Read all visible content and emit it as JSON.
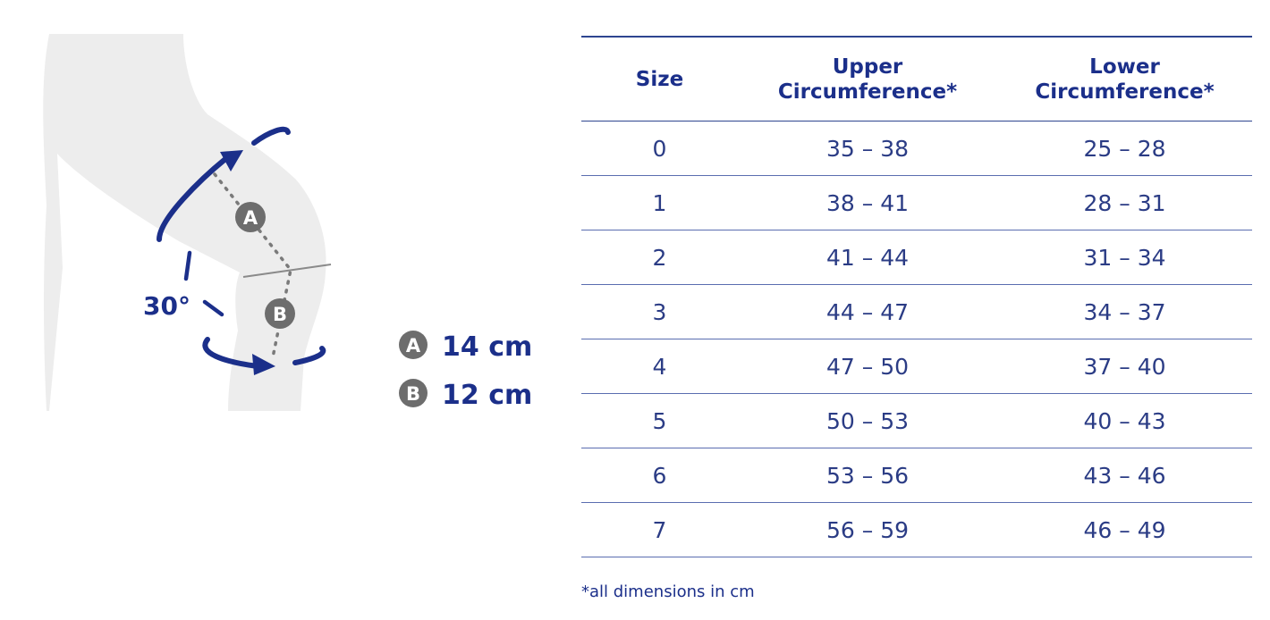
{
  "diagram": {
    "angle_label": "30°",
    "measurements": [
      {
        "point": "A",
        "value": "14 cm"
      },
      {
        "point": "B",
        "value": "12 cm"
      }
    ],
    "colors": {
      "accent": "#1b2f8a",
      "leg": "#ededed",
      "point": "#6d6d6d"
    }
  },
  "table": {
    "headers": {
      "size": "Size",
      "upper": [
        "Upper",
        "Circumference*"
      ],
      "lower": [
        "Lower",
        "Circumference*"
      ]
    },
    "rows": [
      {
        "size": "0",
        "upper": "35 – 38",
        "lower": "25 – 28"
      },
      {
        "size": "1",
        "upper": "38 – 41",
        "lower": "28 – 31"
      },
      {
        "size": "2",
        "upper": "41 – 44",
        "lower": "31 – 34"
      },
      {
        "size": "3",
        "upper": "44 – 47",
        "lower": "34 – 37"
      },
      {
        "size": "4",
        "upper": "47 – 50",
        "lower": "37 – 40"
      },
      {
        "size": "5",
        "upper": "50 – 53",
        "lower": "40 – 43"
      },
      {
        "size": "6",
        "upper": "53 – 56",
        "lower": "43 – 46"
      },
      {
        "size": "7",
        "upper": "56 – 59",
        "lower": "46 – 49"
      }
    ]
  },
  "footnote": "*all dimensions in cm"
}
